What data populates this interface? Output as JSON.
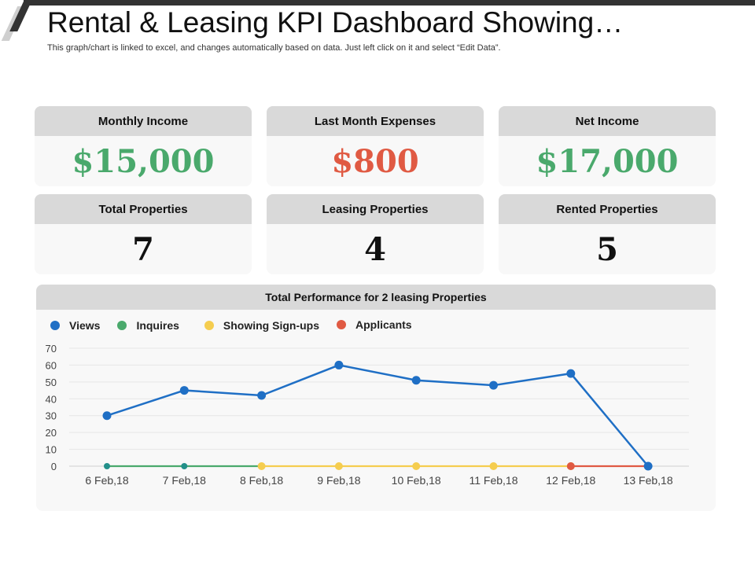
{
  "header": {
    "title": "Rental & Leasing KPI Dashboard Showing…",
    "subtitle": "This graph/chart is linked to excel, and changes automatically based on data. Just left click on it and select “Edit Data”."
  },
  "kpis": [
    {
      "label": "Monthly Income",
      "value": "$15,000",
      "color": "#4aa96c"
    },
    {
      "label": "Last Month Expenses",
      "value": "$800",
      "color": "#e05a43"
    },
    {
      "label": "Net Income",
      "value": "$17,000",
      "color": "#4aa96c"
    },
    {
      "label": "Total Properties",
      "value": "7",
      "color": "#111111"
    },
    {
      "label": "Leasing Properties",
      "value": "4",
      "color": "#111111"
    },
    {
      "label": "Rented Properties",
      "value": "5",
      "color": "#111111"
    }
  ],
  "chart": {
    "title": "Total Performance for 2 leasing Properties",
    "legend": [
      {
        "label": "Views",
        "color": "#1f6fc5"
      },
      {
        "label": "Inquires",
        "color": "#4aa96c"
      },
      {
        "label": "Showing Sign-ups",
        "color": "#f5cd4f"
      },
      {
        "label": "Applicants",
        "color": "#e05a43"
      }
    ]
  },
  "chart_data": {
    "type": "line",
    "title": "Total Performance for 2 leasing Properties",
    "xlabel": "",
    "ylabel": "",
    "categories": [
      "6 Feb,18",
      "7 Feb,18",
      "8 Feb,18",
      "9 Feb,18",
      "10 Feb,18",
      "11 Feb,18",
      "12 Feb,18",
      "13 Feb,18"
    ],
    "series": [
      {
        "name": "Views",
        "color": "#1f6fc5",
        "values": [
          30,
          45,
          42,
          60,
          51,
          48,
          55,
          0
        ]
      },
      {
        "name": "Inquires",
        "color": "#4aa96c",
        "values": [
          0,
          0,
          0,
          null,
          null,
          null,
          null,
          null
        ]
      },
      {
        "name": "Showing Sign-ups",
        "color": "#f5cd4f",
        "values": [
          null,
          null,
          0,
          0,
          0,
          0,
          0,
          null
        ]
      },
      {
        "name": "Applicants",
        "color": "#e05a43",
        "values": [
          null,
          null,
          null,
          null,
          null,
          null,
          0,
          0
        ]
      }
    ],
    "yticks": [
      0,
      10,
      20,
      30,
      40,
      50,
      60,
      70
    ],
    "ylim": [
      0,
      70
    ],
    "grid": true,
    "legend_position": "top"
  }
}
